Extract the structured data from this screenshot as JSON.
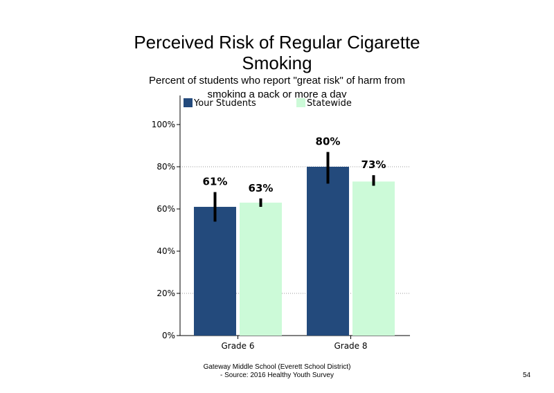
{
  "slide": {
    "title_line1": "Perceived Risk of Regular Cigarette",
    "title_line2": "Smoking",
    "subtitle": "Percent of students who report \"great risk\" of harm from smoking  a pack or more a day",
    "footer_line1": "Gateway Middle  School  (Everett School District)",
    "footer_line2": "- Source: 2016 Healthy  Youth Survey",
    "page_number": "54"
  },
  "chart_data": {
    "type": "bar",
    "title": "Perceived Risk of Regular Cigarette Smoking",
    "subtitle": "Percent of students who report \"great risk\" of harm from smoking  a pack or more a day",
    "categories": [
      "Grade 6",
      "Grade 8"
    ],
    "series": [
      {
        "name": "Your Students",
        "color": "#234a7c",
        "values": [
          61,
          80
        ],
        "labels": [
          "61%",
          "80%"
        ],
        "error_low": [
          54,
          72
        ],
        "error_high": [
          68,
          87
        ]
      },
      {
        "name": "Statewide",
        "color": "#ccfad8",
        "values": [
          63,
          73
        ],
        "labels": [
          "63%",
          "73%"
        ],
        "error_low": [
          61,
          71
        ],
        "error_high": [
          65,
          76
        ]
      }
    ],
    "ylim": [
      0,
      100
    ],
    "yticks": [
      0,
      20,
      40,
      60,
      80,
      100
    ],
    "ytick_labels": [
      "0%",
      "20%",
      "40%",
      "60%",
      "80%",
      "100%"
    ],
    "gridlines": [
      20,
      80
    ],
    "legend": "top",
    "xlabel": "",
    "ylabel": ""
  }
}
